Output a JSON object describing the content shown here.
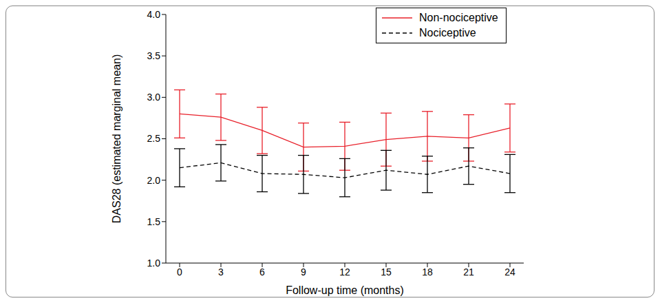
{
  "chart_data": {
    "type": "line",
    "x_label": "Follow-up time (months)",
    "y_label": "DAS28 (estimated marginal mean)",
    "x": [
      0,
      3,
      6,
      9,
      12,
      15,
      18,
      21,
      24
    ],
    "xlim": [
      -1,
      25
    ],
    "xticks": [
      0,
      3,
      6,
      9,
      12,
      15,
      18,
      21,
      24
    ],
    "ylim": [
      1,
      4
    ],
    "yticks": [
      {
        "value": 1,
        "label": "1.0"
      },
      {
        "value": 1.5,
        "label": "1.5"
      },
      {
        "value": 2,
        "label": "2.0"
      },
      {
        "value": 2.5,
        "label": "2.5"
      },
      {
        "value": 3,
        "label": "3.0"
      },
      {
        "value": 3.5,
        "label": "3.5"
      },
      {
        "value": 4,
        "label": "4.0"
      }
    ],
    "legend": "upper right",
    "series": [
      {
        "name": "Non-nociceptive",
        "color": "#e8202a",
        "line_style": "solid",
        "values": [
          2.8,
          2.76,
          2.6,
          2.4,
          2.41,
          2.49,
          2.53,
          2.51,
          2.63
        ],
        "errors": [
          0.29,
          0.28,
          0.28,
          0.29,
          0.29,
          0.32,
          0.3,
          0.28,
          0.29
        ]
      },
      {
        "name": "Nociceptive",
        "color": "#000000",
        "line_style": "dashed",
        "values": [
          2.15,
          2.21,
          2.08,
          2.07,
          2.03,
          2.12,
          2.07,
          2.17,
          2.08
        ],
        "errors": [
          0.23,
          0.22,
          0.22,
          0.23,
          0.23,
          0.24,
          0.22,
          0.22,
          0.23
        ]
      }
    ]
  }
}
